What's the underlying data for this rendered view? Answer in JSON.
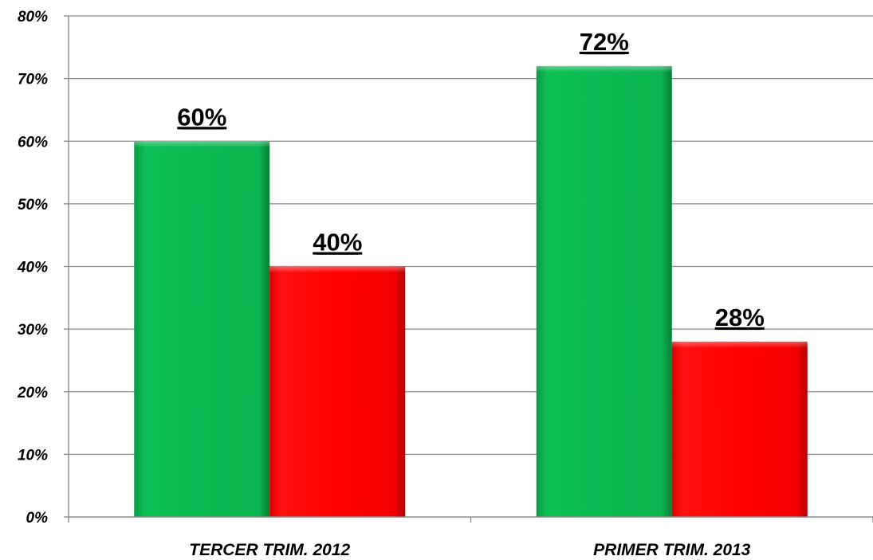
{
  "chart_data": {
    "type": "bar",
    "categories": [
      "TERCER TRIM. 2012",
      "PRIMER TRIM. 2013"
    ],
    "series": [
      {
        "values": [
          60,
          72
        ],
        "color": "#0ab84f"
      },
      {
        "values": [
          40,
          28
        ],
        "color": "#ff0000"
      }
    ],
    "data_labels": [
      [
        "60%",
        "72%"
      ],
      [
        "40%",
        "28%"
      ]
    ],
    "y_ticks": [
      "0%",
      "10%",
      "20%",
      "30%",
      "40%",
      "50%",
      "60%",
      "70%",
      "80%"
    ],
    "ylim": [
      0,
      80
    ],
    "y_unit": "%",
    "grid": true,
    "legend": "none",
    "title": "",
    "xlabel": "",
    "ylabel": ""
  }
}
